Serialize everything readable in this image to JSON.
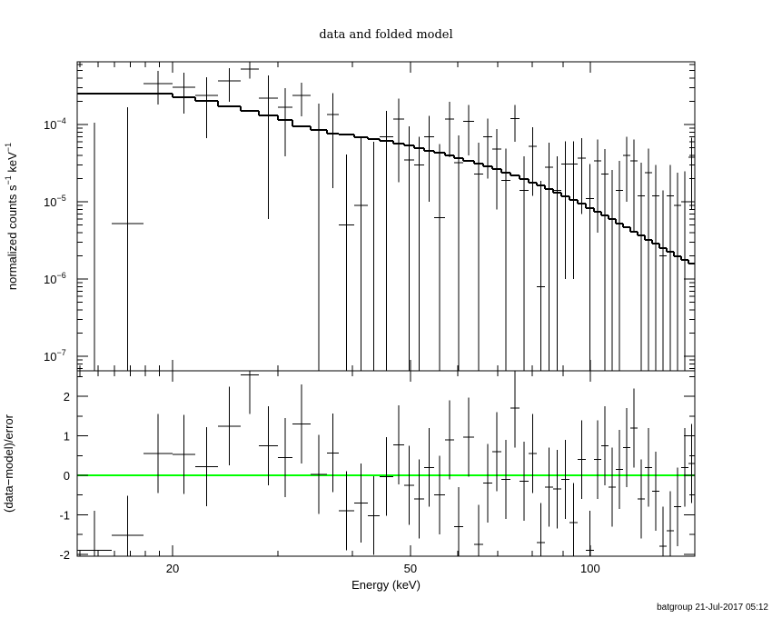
{
  "chart_data": [
    {
      "type": "folded-spectrum",
      "title": "data and folded model",
      "ylabel": [
        {
          "text": "normalized counts s"
        },
        {
          "text": "−1",
          "sup": true
        },
        {
          "text": "  keV"
        },
        {
          "text": "−1",
          "sup": true
        }
      ],
      "xscale": "log",
      "yscale": "log",
      "xlim": [
        13.85,
        149.6
      ],
      "ylim": [
        6.5e-08,
        0.00065
      ],
      "yticks": [
        {
          "value": 1e-07,
          "label": "10",
          "exponent": "−7"
        },
        {
          "value": 1e-06,
          "label": "10",
          "exponent": "−6"
        },
        {
          "value": 1e-05,
          "label": "10",
          "exponent": "−5"
        },
        {
          "value": 0.0001,
          "label": "10",
          "exponent": "−4"
        }
      ],
      "yminorticks": [
        7e-08,
        8e-08,
        9e-08,
        2e-07,
        3e-07,
        4e-07,
        5e-07,
        6e-07,
        7e-07,
        8e-07,
        9e-07,
        2e-06,
        3e-06,
        4e-06,
        5e-06,
        6e-06,
        7e-06,
        8e-06,
        9e-06,
        2e-05,
        3e-05,
        4e-05,
        5e-05,
        6e-05,
        7e-05,
        8e-05,
        9e-05,
        0.0002,
        0.0003,
        0.0004,
        0.0005,
        0.0006
      ],
      "bin_edges": [
        13.85,
        15.82,
        17.88,
        20.0,
        21.82,
        23.82,
        26.0,
        27.88,
        30.02,
        31.74,
        34.04,
        36.26,
        37.94,
        40.28,
        42.44,
        44.42,
        46.82,
        48.82,
        50.74,
        52.72,
        54.8,
        57.14,
        59.18,
        61.28,
        63.92,
        66.2,
        68.56,
        71.0,
        73.52,
        76.12,
        78.84,
        81.38,
        84.0,
        86.68,
        89.46,
        92.3,
        95.26,
        98.3,
        101.46,
        104.32,
        107.28,
        110.3,
        113.46,
        116.68,
        119.98,
        123.4,
        126.9,
        130.5,
        134.2,
        138.02,
        141.94,
        145.96,
        149.6
      ],
      "data": {
        "color": "#000000",
        "values": [
          0,
          5.2e-06,
          0.000338,
          0.000304,
          0.000238,
          0.000367,
          0.000522,
          0.000219,
          0.000167,
          0.000238,
          8.6e-05,
          0.000135,
          5e-06,
          8.97e-06,
          0,
          7e-05,
          0.000118,
          3.48e-05,
          3e-05,
          7e-05,
          6.2e-06,
          0.000118,
          3.2e-05,
          0.00011,
          2.3e-05,
          7e-05,
          4.8e-05,
          1.9e-05,
          0.00012,
          1.4e-05,
          5.2e-05,
          8e-07,
          2.8e-05,
          1.4e-05,
          3.1e-05,
          3.1e-05,
          3.7e-05,
          1.1e-05,
          3.4e-05,
          2.3e-05,
          6e-06,
          1.4e-05,
          4e-05,
          3.4e-05,
          1.2e-05,
          2.4e-05,
          1.2e-05,
          2e-06,
          1.2e-05,
          9e-06,
          1e-05,
          3.8e-05
        ],
        "errors": [
          0.000106,
          0.000162,
          0.000156,
          0.000165,
          0.000171,
          0.000169,
          0.000126,
          0.000213,
          0.000128,
          0.00011,
          0.0001,
          0.00012,
          3.6e-05,
          6.1e-05,
          6e-05,
          8e-05,
          0.0001,
          6e-05,
          4e-05,
          6e-05,
          5e-05,
          8e-05,
          4e-05,
          7e-05,
          3.5e-05,
          5e-05,
          4e-05,
          3e-05,
          6e-05,
          2.5e-05,
          4e-05,
          1.8e-05,
          3e-05,
          2.5e-05,
          3e-05,
          3e-05,
          3e-05,
          2e-05,
          3e-05,
          2.5e-05,
          2e-05,
          2e-05,
          3e-05,
          3e-05,
          2e-05,
          2.5e-05,
          1.8e-05,
          1.2e-05,
          1.8e-05,
          1.5e-05,
          1.5e-05,
          3e-05
        ]
      },
      "model": {
        "color": "#000000",
        "values": [
          0.000251,
          0.000251,
          0.000251,
          0.000225,
          0.000202,
          0.000172,
          0.00015,
          0.000131,
          0.000115,
          9.47e-05,
          8.5e-05,
          7.63e-05,
          7.42e-05,
          6.84e-05,
          6.48e-05,
          6.14e-05,
          5.66e-05,
          5.36e-05,
          4.94e-05,
          4.56e-05,
          4.32e-05,
          3.98e-05,
          3.67e-05,
          3.38e-05,
          3.12e-05,
          2.88e-05,
          2.65e-05,
          2.38e-05,
          2.19e-05,
          1.97e-05,
          1.77e-05,
          1.63e-05,
          1.46e-05,
          1.31e-05,
          1.18e-05,
          1.06e-05,
          9.47e-06,
          8.27e-06,
          7.43e-06,
          6.67e-06,
          5.98e-06,
          5.22e-06,
          4.69e-06,
          4.09e-06,
          3.67e-06,
          3.21e-06,
          2.88e-06,
          2.51e-06,
          2.25e-06,
          1.97e-06,
          1.77e-06,
          1.58e-06
        ]
      }
    },
    {
      "type": "residuals",
      "ylabel": "(data−model)/error",
      "xlabel": "Energy (keV)",
      "ylim": [
        -2.05,
        2.65
      ],
      "yticks": [
        -2,
        -1,
        0,
        1,
        2
      ],
      "yminorticks": [
        -1.5,
        -0.5,
        0.5,
        1.5,
        2.5
      ],
      "xticks": [
        20,
        50,
        100
      ],
      "xminorticks": [
        14,
        15,
        16,
        17,
        18,
        19,
        30,
        40,
        60,
        70,
        80,
        90
      ],
      "reference_line": {
        "value": 0,
        "color": "#00ff00"
      },
      "data": {
        "color": "#000000",
        "values": [
          -1.9,
          -1.52,
          0.55,
          0.53,
          0.22,
          1.25,
          2.55,
          0.75,
          0.45,
          1.3,
          0.02,
          0.57,
          -0.9,
          -0.7,
          -1.02,
          -0.03,
          0.77,
          -0.25,
          -0.6,
          0.2,
          -0.5,
          0.9,
          -1.3,
          0.97,
          -1.75,
          -0.2,
          0.6,
          -0.1,
          1.7,
          -0.15,
          0.55,
          -1.7,
          -0.3,
          -0.35,
          -0.1,
          -1.2,
          0.4,
          -1.9,
          0.4,
          0.75,
          -0.3,
          0.15,
          0.7,
          1.2,
          -0.6,
          0.2,
          -0.4,
          -1.8,
          -1.4,
          -0.8,
          0.2,
          0.3
        ],
        "errors": [
          1,
          1,
          1,
          1,
          1,
          1,
          1,
          1,
          1,
          1,
          1,
          1,
          1,
          1,
          1,
          1,
          1,
          1,
          1,
          1,
          1,
          1,
          1,
          1,
          1,
          1,
          1,
          1,
          1,
          1,
          1,
          1,
          1,
          1,
          1,
          1,
          1,
          1,
          1,
          1,
          1,
          1,
          1,
          1,
          1,
          1,
          1,
          1,
          1,
          1,
          1,
          1
        ]
      }
    }
  ],
  "footer": "batgroup 21-Jul-2017 05:12"
}
